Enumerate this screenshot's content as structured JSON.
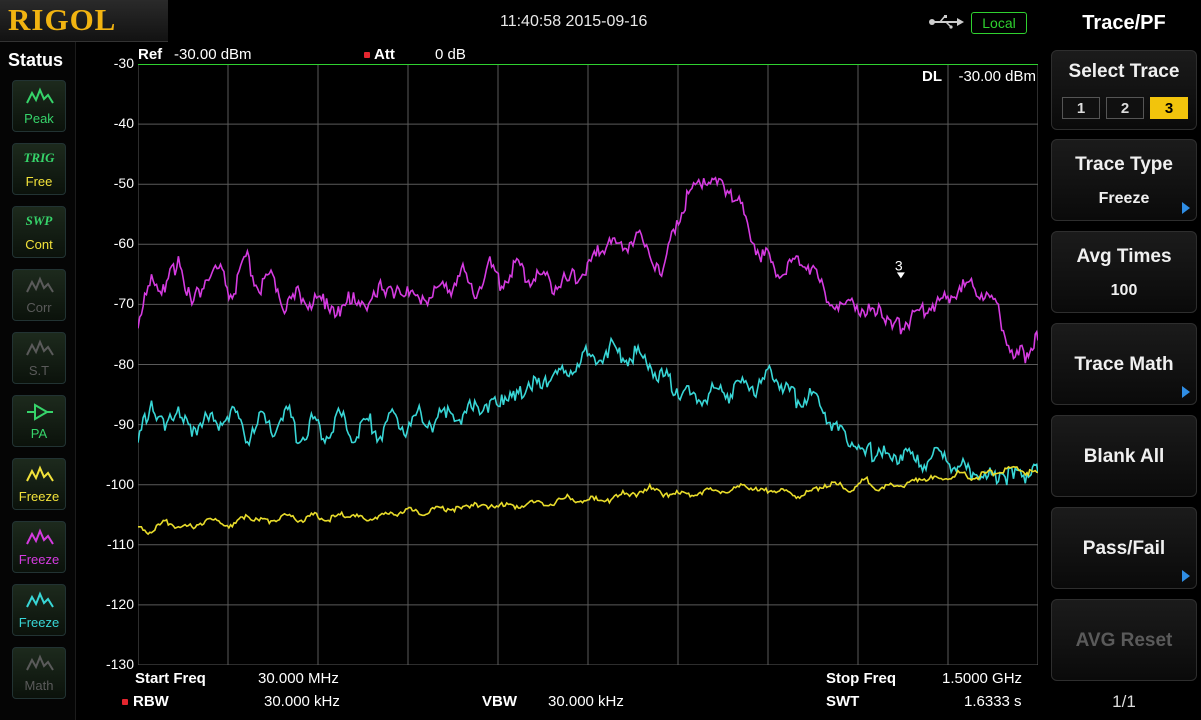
{
  "brand": "RIGOL",
  "header": {
    "datetime": "11:40:58 2015-09-16",
    "usb_icon": "usb-icon",
    "local_label": "Local"
  },
  "status": {
    "title": "Status",
    "items": [
      {
        "top": "",
        "label": "Peak",
        "icon": "peak-icon",
        "color": "#36d46a",
        "active": true
      },
      {
        "top": "TRIG",
        "label": "Free",
        "icon": "",
        "color": "#f2e23a",
        "active": true
      },
      {
        "top": "SWP",
        "label": "Cont",
        "icon": "",
        "color": "#f2e23a",
        "active": true
      },
      {
        "top": "",
        "label": "Corr",
        "icon": "corr-icon",
        "color": "#5a5a5a",
        "active": false
      },
      {
        "top": "",
        "label": "S.T",
        "icon": "st-icon",
        "color": "#5a5a5a",
        "active": false
      },
      {
        "top": "",
        "label": "PA",
        "icon": "pa-icon",
        "color": "#36d46a",
        "active": true
      },
      {
        "top": "",
        "label": "Freeze",
        "icon": "trace1-icon",
        "color": "#f2e23a",
        "active": true
      },
      {
        "top": "",
        "label": "Freeze",
        "icon": "trace2-icon",
        "color": "#d53be0",
        "active": true
      },
      {
        "top": "",
        "label": "Freeze",
        "icon": "trace3-icon",
        "color": "#38d6d6",
        "active": true
      },
      {
        "top": "",
        "label": "Math",
        "icon": "math-icon",
        "color": "#5a5a5a",
        "active": false
      }
    ]
  },
  "display": {
    "ref_label": "Ref",
    "ref_value": "-30.00 dBm",
    "att_label": "Att",
    "att_value": "0 dB",
    "dl_label": "DL",
    "dl_value": "-30.00 dBm",
    "marker_label": "3",
    "start_freq_label": "Start Freq",
    "start_freq_value": "30.000 MHz",
    "stop_freq_label": "Stop Freq",
    "stop_freq_value": "1.5000 GHz",
    "rbw_label": "RBW",
    "rbw_value": "30.000 kHz",
    "vbw_label": "VBW",
    "vbw_value": "30.000 kHz",
    "swt_label": "SWT",
    "swt_value": "1.6333 s"
  },
  "chart_data": {
    "type": "line",
    "ylim": [
      -130,
      -30
    ],
    "yticks": [
      "-30",
      "-40",
      "-50",
      "-60",
      "-70",
      "-80",
      "-90",
      "-100",
      "-110",
      "-120",
      "-130"
    ],
    "x_range_mhz": [
      30,
      1500
    ],
    "grid": true,
    "display_line": -30,
    "series": [
      {
        "color": "#d53be0",
        "x": [
          30,
          52,
          74,
          96,
          118,
          140,
          162,
          184,
          206,
          228,
          250,
          272,
          294,
          316,
          338,
          360,
          382,
          404,
          426,
          448,
          470,
          492,
          514,
          536,
          558,
          580,
          602,
          624,
          646,
          668,
          690,
          712,
          734,
          756,
          778,
          800,
          822,
          844,
          866,
          888,
          910,
          932,
          954,
          976,
          998,
          1020,
          1042,
          1064,
          1086,
          1108,
          1130,
          1152,
          1174,
          1196,
          1218,
          1240,
          1262,
          1284,
          1306,
          1328,
          1350,
          1372,
          1394,
          1416,
          1438,
          1460,
          1482,
          1500
        ],
        "y": [
          -74,
          -65,
          -68,
          -62,
          -70,
          -66,
          -64,
          -69,
          -62,
          -68,
          -65,
          -71,
          -68,
          -70,
          -69,
          -72,
          -68,
          -71,
          -66,
          -69,
          -67,
          -70,
          -67,
          -68,
          -64,
          -69,
          -63,
          -67,
          -63,
          -66,
          -65,
          -67,
          -66,
          -65,
          -62,
          -59,
          -61,
          -58,
          -62,
          -64,
          -56,
          -51,
          -49,
          -50,
          -51,
          -55,
          -61,
          -63,
          -65,
          -62,
          -64,
          -68,
          -71,
          -69,
          -72,
          -70,
          -74,
          -73,
          -71,
          -70,
          -69,
          -67,
          -67,
          -68,
          -72,
          -79,
          -78,
          -76
        ]
      },
      {
        "color": "#38d6d6",
        "x": [
          30,
          52,
          74,
          96,
          118,
          140,
          162,
          184,
          206,
          228,
          250,
          272,
          294,
          316,
          338,
          360,
          382,
          404,
          426,
          448,
          470,
          492,
          514,
          536,
          558,
          580,
          602,
          624,
          646,
          668,
          690,
          712,
          734,
          756,
          778,
          800,
          822,
          844,
          866,
          888,
          910,
          932,
          954,
          976,
          998,
          1020,
          1042,
          1064,
          1086,
          1108,
          1130,
          1152,
          1174,
          1196,
          1218,
          1240,
          1262,
          1284,
          1306,
          1328,
          1350,
          1372,
          1394,
          1416,
          1438,
          1460,
          1482,
          1500
        ],
        "y": [
          -93,
          -86,
          -91,
          -87,
          -92,
          -88,
          -91,
          -87,
          -93,
          -88,
          -92,
          -87,
          -93,
          -89,
          -92,
          -88,
          -93,
          -89,
          -92,
          -88,
          -91,
          -88,
          -90,
          -87,
          -90,
          -86,
          -88,
          -85,
          -86,
          -83,
          -84,
          -81,
          -82,
          -78,
          -80,
          -77,
          -79,
          -78,
          -80,
          -82,
          -84,
          -85,
          -86,
          -84,
          -85,
          -83,
          -84,
          -81,
          -84,
          -86,
          -85,
          -88,
          -91,
          -93,
          -95,
          -94,
          -96,
          -94,
          -97,
          -95,
          -96,
          -97,
          -98,
          -99,
          -98,
          -99,
          -98,
          -98
        ]
      },
      {
        "color": "#e8dc2b",
        "x": [
          30,
          52,
          74,
          96,
          118,
          140,
          162,
          184,
          206,
          228,
          250,
          272,
          294,
          316,
          338,
          360,
          382,
          404,
          426,
          448,
          470,
          492,
          514,
          536,
          558,
          580,
          602,
          624,
          646,
          668,
          690,
          712,
          734,
          756,
          778,
          800,
          822,
          844,
          866,
          888,
          910,
          932,
          954,
          976,
          998,
          1020,
          1042,
          1064,
          1086,
          1108,
          1130,
          1152,
          1174,
          1196,
          1218,
          1240,
          1262,
          1284,
          1306,
          1328,
          1350,
          1372,
          1394,
          1416,
          1438,
          1460,
          1482,
          1500
        ],
        "y": [
          -107,
          -108,
          -106,
          -107,
          -107,
          -106,
          -106,
          -107,
          -105,
          -106,
          -106,
          -105,
          -106,
          -105,
          -106,
          -105,
          -105,
          -106,
          -105,
          -105,
          -104,
          -105,
          -104,
          -104,
          -104,
          -103,
          -104,
          -103,
          -104,
          -103,
          -103,
          -103,
          -102,
          -103,
          -102,
          -103,
          -101,
          -102,
          -100,
          -102,
          -101,
          -102,
          -101,
          -101,
          -101,
          -100,
          -101,
          -101,
          -101,
          -102,
          -101,
          -100,
          -100,
          -101,
          -99,
          -101,
          -100,
          -100,
          -99,
          -99,
          -99,
          -98,
          -99,
          -98,
          -98,
          -97,
          -98,
          -98
        ]
      }
    ]
  },
  "menu": {
    "title": "Trace/PF",
    "select_trace_label": "Select Trace",
    "trace_options": [
      "1",
      "2",
      "3"
    ],
    "selected_trace": "3",
    "trace_type_label": "Trace Type",
    "trace_type_value": "Freeze",
    "avg_times_label": "Avg Times",
    "avg_times_value": "100",
    "trace_math_label": "Trace Math",
    "blank_all_label": "Blank All",
    "pass_fail_label": "Pass/Fail",
    "avg_reset_label": "AVG Reset",
    "page_indicator": "1/1",
    "arrow_color": "#2f8de4",
    "selected_color": "#f2c40c"
  }
}
